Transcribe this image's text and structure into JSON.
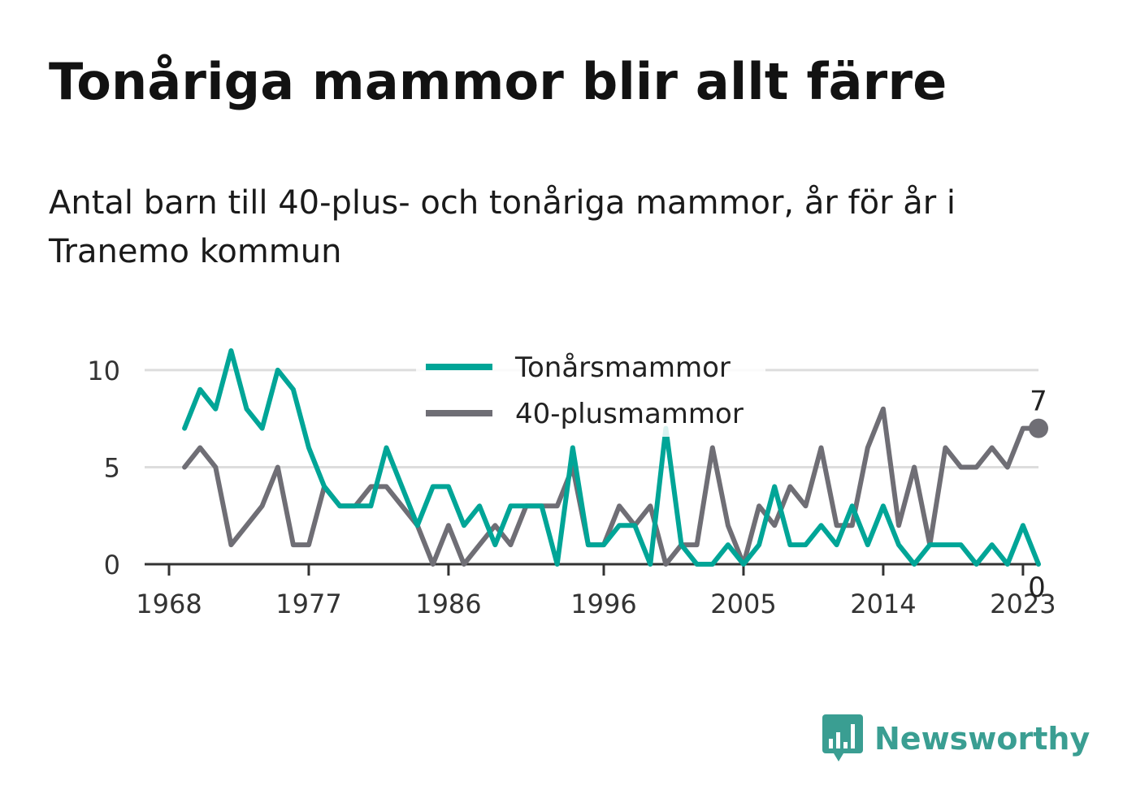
{
  "title": "Tonåriga mammor blir allt färre",
  "subtitle": "Antal barn till 40-plus- och tonåriga mammor, år för år i Tranemo kommun",
  "brand": "Newsworthy",
  "colors": {
    "teen": "#00a597",
    "forty": "#6f6e75",
    "grid": "#dddddd",
    "axis": "#333333"
  },
  "chart_data": {
    "type": "line",
    "xlim": [
      1968,
      2024
    ],
    "ylim": [
      0,
      11
    ],
    "xticks": [
      1968,
      1977,
      1986,
      1996,
      2005,
      2014,
      2023
    ],
    "yticks": [
      0,
      5,
      10
    ],
    "grid": true,
    "legend": "top-center",
    "x": [
      1969,
      1970,
      1971,
      1972,
      1973,
      1974,
      1975,
      1976,
      1977,
      1978,
      1979,
      1980,
      1981,
      1982,
      1983,
      1984,
      1985,
      1986,
      1987,
      1988,
      1989,
      1990,
      1991,
      1992,
      1993,
      1994,
      1995,
      1996,
      1997,
      1998,
      1999,
      2000,
      2001,
      2002,
      2003,
      2004,
      2005,
      2006,
      2007,
      2008,
      2009,
      2010,
      2011,
      2012,
      2013,
      2014,
      2015,
      2016,
      2017,
      2018,
      2019,
      2020,
      2021,
      2022,
      2023,
      2024
    ],
    "series": [
      {
        "name": "Tonårsmammor",
        "color": "#00a597",
        "end_label": "0",
        "values": [
          7,
          9,
          8,
          11,
          8,
          7,
          10,
          9,
          6,
          4,
          3,
          3,
          3,
          6,
          4,
          2,
          4,
          4,
          2,
          3,
          1,
          3,
          3,
          3,
          0,
          6,
          1,
          1,
          2,
          2,
          0,
          7,
          1,
          0,
          0,
          1,
          0,
          1,
          4,
          1,
          1,
          2,
          1,
          3,
          1,
          3,
          1,
          0,
          1,
          1,
          1,
          0,
          1,
          0,
          2,
          0
        ]
      },
      {
        "name": "40-plusmammor",
        "color": "#6f6e75",
        "end_label": "7",
        "values": [
          5,
          6,
          5,
          1,
          2,
          3,
          5,
          1,
          1,
          4,
          3,
          3,
          4,
          4,
          3,
          2,
          0,
          2,
          0,
          1,
          2,
          1,
          3,
          3,
          3,
          5,
          1,
          1,
          3,
          2,
          3,
          0,
          1,
          1,
          6,
          2,
          0,
          3,
          2,
          4,
          3,
          6,
          2,
          2,
          6,
          8,
          2,
          5,
          1,
          6,
          5,
          5,
          6,
          5,
          7,
          7
        ]
      }
    ]
  }
}
